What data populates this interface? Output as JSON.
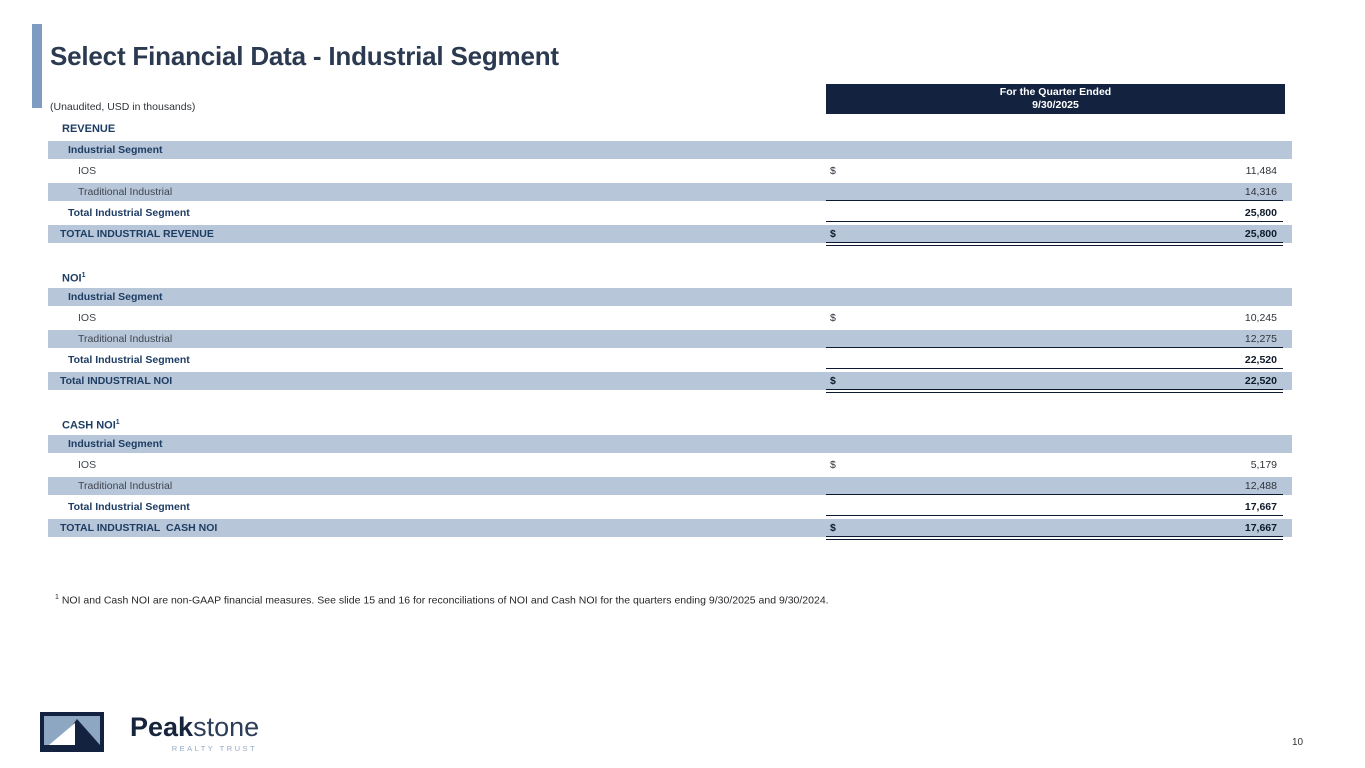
{
  "slide": {
    "title": "Select Financial Data - Industrial Segment",
    "subtitle": "(Unaudited, USD in thousands)",
    "page_number": "10"
  },
  "table": {
    "column_header": {
      "line1": "For the Quarter Ended",
      "line2": "9/30/2025"
    },
    "sections": [
      {
        "title": "REVENUE",
        "rows": [
          {
            "label": "Industrial Segment",
            "type": "group",
            "shaded": true
          },
          {
            "label": "IOS",
            "type": "item",
            "dollar": "$",
            "value": "11,484"
          },
          {
            "label": "Traditional Industrial",
            "type": "item",
            "shaded": true,
            "value": "14,316",
            "rule": "single"
          },
          {
            "label": "Total Industrial Segment",
            "type": "subtotal",
            "value": "25,800",
            "rule": "single"
          },
          {
            "label": "TOTAL INDUSTRIAL REVENUE",
            "type": "total",
            "shaded": true,
            "dollar": "$",
            "value": "25,800",
            "rule": "double"
          }
        ]
      },
      {
        "title": "NOI",
        "sup": "1",
        "rows": [
          {
            "label": "Industrial Segment",
            "type": "group",
            "shaded": true
          },
          {
            "label": "IOS",
            "type": "item",
            "dollar": "$",
            "value": "10,245"
          },
          {
            "label": "Traditional Industrial",
            "type": "item",
            "shaded": true,
            "value": "12,275",
            "rule": "single"
          },
          {
            "label": "Total Industrial Segment",
            "type": "subtotal",
            "value": "22,520",
            "rule": "single"
          },
          {
            "label": "Total INDUSTRIAL NOI",
            "type": "total",
            "shaded": true,
            "dollar": "$",
            "value": "22,520",
            "rule": "double"
          }
        ]
      },
      {
        "title": "CASH NOI",
        "sup": "1",
        "rows": [
          {
            "label": "Industrial Segment",
            "type": "group",
            "shaded": true
          },
          {
            "label": "IOS",
            "type": "item",
            "dollar": "$",
            "value": "5,179"
          },
          {
            "label": "Traditional Industrial",
            "type": "item",
            "shaded": true,
            "value": "12,488",
            "rule": "single"
          },
          {
            "label": "Total Industrial Segment",
            "type": "subtotal",
            "value": "17,667",
            "rule": "single"
          },
          {
            "label": "TOTAL INDUSTRIAL  CASH NOI",
            "type": "total",
            "shaded": true,
            "dollar": "$",
            "value": "17,667",
            "rule": "double"
          }
        ]
      }
    ]
  },
  "footnote": {
    "sup": "1",
    "text": " NOI and Cash NOI are non-GAAP financial measures. See slide 15 and 16 for reconciliations of NOI and Cash NOI for the quarters ending 9/30/2025 and 9/30/2024."
  },
  "logo": {
    "brand_bold": "Peak",
    "brand_light": "stone",
    "tagline": "REALTY TRUST"
  },
  "colors": {
    "navy": "#13233f",
    "shaded_row": "#b7c6d9",
    "accent_bar": "#7e9cc2",
    "label_navy": "#1e3d63"
  }
}
